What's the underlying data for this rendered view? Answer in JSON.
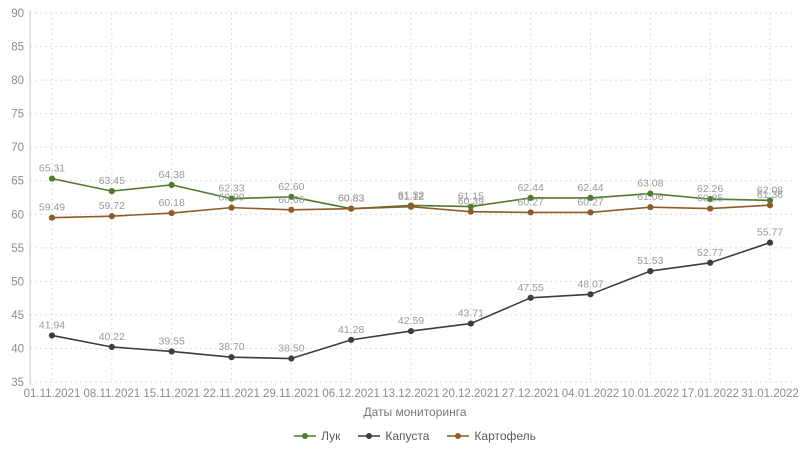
{
  "chart_data": {
    "type": "line",
    "title": "",
    "xlabel": "Даты мониторинга",
    "ylabel": "",
    "ylim": [
      35,
      90
    ],
    "ytick_step": 5,
    "grid": true,
    "legend_position": "bottom",
    "categories": [
      "01.11.2021",
      "08.11.2021",
      "15.11.2021",
      "22.11.2021",
      "29.11.2021",
      "06.12.2021",
      "13.12.2021",
      "20.12.2021",
      "27.12.2021",
      "04.01.2022",
      "10.01.2022",
      "17.01.2022",
      "31.01.2022"
    ],
    "series": [
      {
        "name": "Лук",
        "color": "#4e7b2c",
        "values": [
          65.31,
          63.45,
          64.38,
          62.33,
          62.6,
          60.83,
          61.32,
          61.15,
          62.44,
          62.44,
          63.08,
          62.26,
          62.08
        ]
      },
      {
        "name": "Капуста",
        "color": "#3d3d3d",
        "values": [
          41.94,
          40.22,
          39.55,
          38.7,
          38.5,
          41.28,
          42.59,
          43.71,
          47.55,
          48.07,
          51.53,
          52.77,
          55.77
        ]
      },
      {
        "name": "Картофель",
        "color": "#8e5c28",
        "values": [
          59.49,
          59.72,
          60.18,
          60.99,
          60.66,
          60.83,
          61.12,
          60.39,
          60.27,
          60.27,
          61.06,
          60.85,
          61.36
        ]
      }
    ]
  },
  "style_colors": {
    "value_label": "#999999",
    "tick_label": "#8c8c8c",
    "axis_line": "#c8c8c8",
    "grid_line": "#dedede"
  }
}
